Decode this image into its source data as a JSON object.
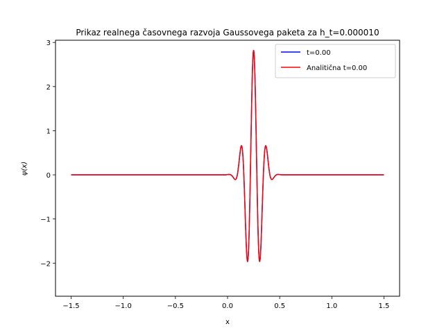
{
  "chart_data": {
    "type": "line",
    "title": "Prikaz realnega časovnega razvoja Gaussovega paketa za h_t=0.000010",
    "xlabel": "x",
    "ylabel": "ψ(x)",
    "xlim": [
      -1.65,
      1.65
    ],
    "ylim": [
      -2.75,
      3.05
    ],
    "x_ticks": [
      -1.5,
      -1.0,
      -0.5,
      0.0,
      0.5,
      1.0,
      1.5
    ],
    "x_tick_labels": [
      "−1.5",
      "−1.0",
      "−0.5",
      "0.0",
      "0.5",
      "1.0",
      "1.5"
    ],
    "y_ticks": [
      -2,
      -1,
      0,
      1,
      2,
      3
    ],
    "y_tick_labels": [
      "−2",
      "−1",
      "0",
      "1",
      "2",
      "3"
    ],
    "grid": false,
    "legend_position": "top-right",
    "x_range": [
      -1.5,
      1.5
    ],
    "series": [
      {
        "name": "t=0.00",
        "color": "#0000ff",
        "function": "gaussian_wavepacket_real",
        "amplitude": 2.82,
        "center": 0.25,
        "sigma": 0.1,
        "wavenumber": 50.27
      },
      {
        "name": "Analitična t=0.00",
        "color": "#ff0000",
        "function": "gaussian_wavepacket_real",
        "amplitude": 2.82,
        "center": 0.25,
        "sigma": 0.1,
        "wavenumber": 50.27
      }
    ]
  }
}
